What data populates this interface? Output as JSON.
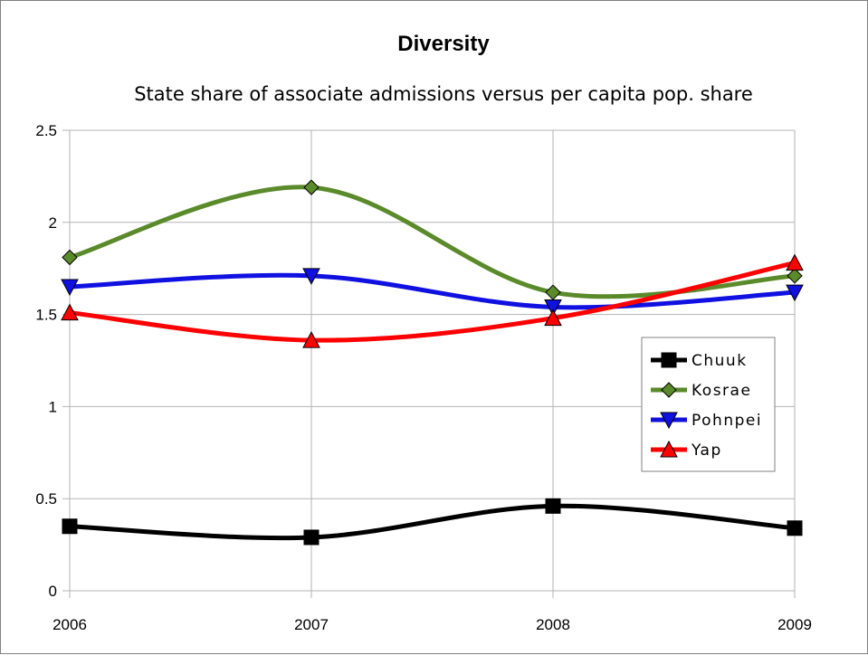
{
  "chart_data": {
    "type": "line",
    "title": "Diversity",
    "subtitle": "State share of associate admissions versus per capita pop. share",
    "xlabel": "",
    "ylabel": "",
    "categories": [
      "2006",
      "2007",
      "2008",
      "2009"
    ],
    "ylim": [
      0,
      2.5
    ],
    "yticks": [
      "0",
      "0.5",
      "1",
      "1.5",
      "2",
      "2.5"
    ],
    "grid": true,
    "smooth": true,
    "legend_position": "right",
    "series": [
      {
        "name": "Chuuk",
        "values": [
          0.35,
          0.29,
          0.46,
          0.34
        ],
        "color": "#000000",
        "marker": "square"
      },
      {
        "name": "Kosrae",
        "values": [
          1.81,
          2.19,
          1.62,
          1.71
        ],
        "color": "#5a8a2a",
        "marker": "diamond"
      },
      {
        "name": "Pohnpei",
        "values": [
          1.65,
          1.71,
          1.54,
          1.62
        ],
        "color": "#1010e0",
        "marker": "triangle-down"
      },
      {
        "name": "Yap",
        "values": [
          1.51,
          1.36,
          1.48,
          1.78
        ],
        "color": "#ff0000",
        "marker": "triangle-up"
      }
    ]
  }
}
